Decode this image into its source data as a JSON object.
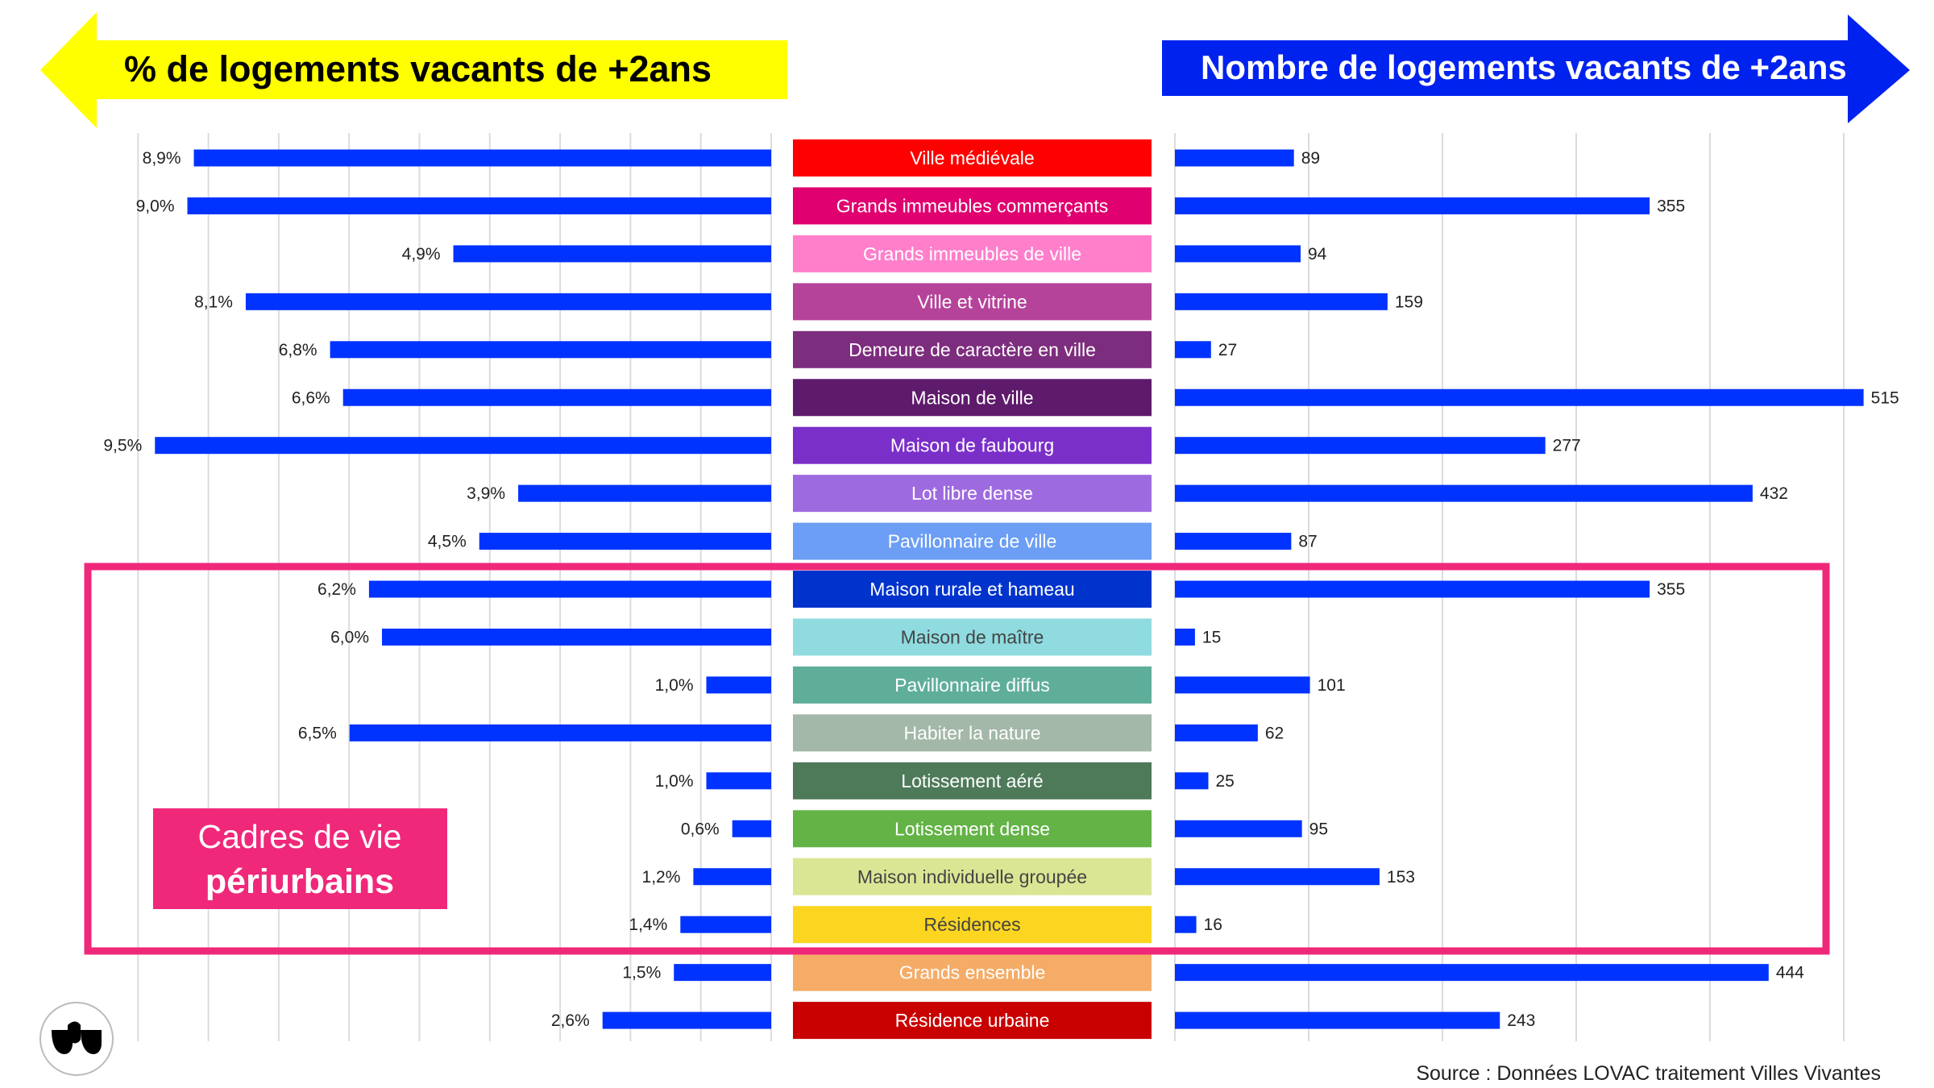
{
  "header": {
    "left_title": "% de logements vacants de +2ans",
    "right_title": "Nombre de logements vacants de +2ans",
    "left_color": "#ffff00",
    "right_color": "#0022ee"
  },
  "highlight": {
    "label_line1": "Cadres de vie",
    "label_line2": "périurbains",
    "color": "#f0287a"
  },
  "source": "Source : Données LOVAC traitement Villes Vivantes",
  "chart_data": {
    "type": "bar",
    "bar_color": "#0033ff",
    "categories": [
      "Ville médiévale",
      "Grands immeubles commerçants",
      "Grands immeubles de ville",
      "Ville et vitrine",
      "Demeure de caractère en ville",
      "Maison de ville",
      "Maison de faubourg",
      "Lot libre dense",
      "Pavillonnaire de ville",
      "Maison rurale et hameau",
      "Maison de maître",
      "Pavillonnaire diffus",
      "Habiter la nature",
      "Lotissement aéré",
      "Lotissement dense",
      "Maison individuelle groupée",
      "Résidences",
      "Grands ensemble",
      "Résidence urbaine"
    ],
    "category_colors": [
      "#ff0000",
      "#e0006f",
      "#ff7fcb",
      "#b5439a",
      "#7d2d7e",
      "#5e1a6b",
      "#7b2fc9",
      "#9e6ae0",
      "#6b9ef4",
      "#0033cc",
      "#8fdbe0",
      "#5fae9a",
      "#a3b8a8",
      "#4e7a5a",
      "#63b346",
      "#dbe695",
      "#fcd520",
      "#f5ac67",
      "#c90000"
    ],
    "category_text_colors": [
      "#ffffff",
      "#ffffff",
      "#ffffff",
      "#ffffff",
      "#ffffff",
      "#ffffff",
      "#ffffff",
      "#ffffff",
      "#ffffff",
      "#ffffff",
      "#444444",
      "#ffffff",
      "#ffffff",
      "#ffffff",
      "#ffffff",
      "#444444",
      "#444444",
      "#ffffff",
      "#ffffff"
    ],
    "series": [
      {
        "name": "% de logements vacants de +2ans",
        "values": [
          8.9,
          9.0,
          4.9,
          8.1,
          6.8,
          6.6,
          9.5,
          3.9,
          4.5,
          6.2,
          6.0,
          1.0,
          6.5,
          1.0,
          0.6,
          1.2,
          1.4,
          1.5,
          2.6
        ],
        "labels": [
          "8,9%",
          "9,0%",
          "4,9%",
          "8,1%",
          "6,8%",
          "6,6%",
          "9,5%",
          "3,9%",
          "4,5%",
          "6,2%",
          "6,0%",
          "1,0%",
          "6,5%",
          "1,0%",
          "0,6%",
          "1,2%",
          "1,4%",
          "1,5%",
          "2,6%"
        ]
      },
      {
        "name": "Nombre de logements vacants de +2ans",
        "values": [
          89,
          355,
          94,
          159,
          27,
          515,
          277,
          432,
          87,
          355,
          15,
          101,
          62,
          25,
          95,
          153,
          16,
          444,
          243
        ],
        "labels": [
          "89",
          "355",
          "94",
          "159",
          "27",
          "515",
          "277",
          "432",
          "87",
          "355",
          "15",
          "101",
          "62",
          "25",
          "95",
          "153",
          "16",
          "444",
          "243"
        ]
      }
    ],
    "xlim_left": [
      0,
      10
    ],
    "xlim_right": [
      0,
      500
    ],
    "grid": true,
    "highlighted_categories": [
      9,
      10,
      11,
      12,
      13,
      14,
      15,
      16
    ]
  }
}
